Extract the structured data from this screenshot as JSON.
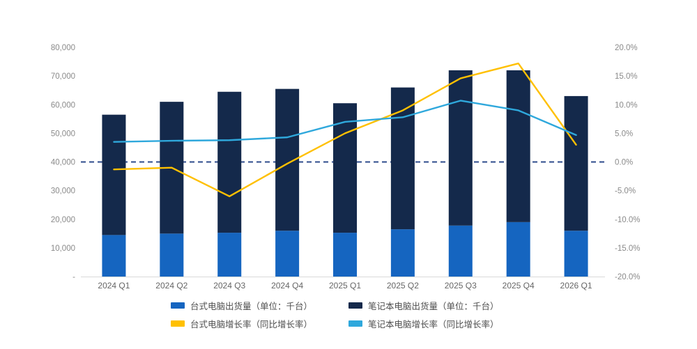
{
  "chart_data": {
    "type": "bar",
    "subtype": "stacked-bars-with-lines-dual-axis",
    "categories": [
      "2024 Q1",
      "2024 Q2",
      "2024 Q3",
      "2024 Q4",
      "2025 Q1",
      "2025 Q2",
      "2025 Q3",
      "2025 Q4",
      "2026 Q1"
    ],
    "bar_series": [
      {
        "name": "台式电脑出货量（单位：千台）",
        "color": "#1565C0",
        "values": [
          14500,
          15000,
          15300,
          16000,
          15300,
          16500,
          17800,
          19000,
          16000
        ]
      },
      {
        "name": "笔记本电脑出货量（单位：千台）",
        "color": "#14294B",
        "values": [
          42000,
          46000,
          49200,
          49500,
          45200,
          49500,
          54200,
          53000,
          47000
        ]
      }
    ],
    "line_series": [
      {
        "name": "台式电脑增长率（同比增长率）",
        "color": "#FFC000",
        "values": [
          -1.3,
          -1.0,
          -6.0,
          -0.3,
          5.0,
          9.0,
          14.6,
          17.2,
          3.0
        ]
      },
      {
        "name": "笔记本电脑增长率（同比增长率）",
        "color": "#2FA8DC",
        "values": [
          3.5,
          3.7,
          3.8,
          4.3,
          7.0,
          7.8,
          10.7,
          9.0,
          4.7
        ]
      }
    ],
    "left_axis": {
      "min": 0,
      "max": 80000,
      "tick_values": [
        80000,
        70000,
        60000,
        50000,
        40000,
        30000,
        20000,
        10000,
        0
      ],
      "tick_labels": [
        "80,000",
        "70,000",
        "60,000",
        "50,000",
        "40,000",
        "30,000",
        "20,000",
        "10,000",
        "-"
      ]
    },
    "right_axis": {
      "min": -20,
      "max": 20,
      "tick_values": [
        20,
        15,
        10,
        5,
        0,
        -5,
        -10,
        -15,
        -20
      ],
      "tick_labels": [
        "20.0%",
        "15.0%",
        "10.0%",
        "5.0%",
        "0.0%",
        "-5.0%",
        "-10.0%",
        "-15.0%",
        "-20.0%"
      ]
    },
    "zero_line": {
      "value": 0,
      "style": "dashed",
      "color": "#2E4B8C"
    },
    "layout": {
      "legend_position": "bottom",
      "grid": "off"
    }
  }
}
